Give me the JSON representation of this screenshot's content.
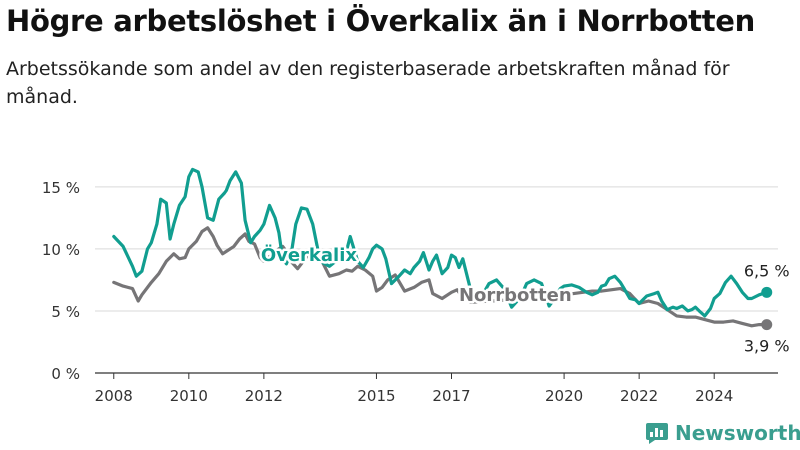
{
  "header": {
    "title": "Högre arbetslöshet i Överkalix än i Norrbotten",
    "subtitle": "Arbetssökande som andel av den registerbaserade arbetskraften månad för månad."
  },
  "colors": {
    "overkalix": "#119e90",
    "norrbotten": "#767577",
    "grid": "#d9d9d9",
    "brand": "#3a9e8f"
  },
  "brand": {
    "name": "Newsworthy",
    "icon": "newsworthy-logo-icon"
  },
  "chart_data": {
    "type": "line",
    "ylim": [
      0,
      17
    ],
    "xlim": [
      2007.5,
      2025.7
    ],
    "yticks": [
      0,
      5,
      10,
      15
    ],
    "ytick_labels": [
      "0 %",
      "5 %",
      "10 %",
      "15 %"
    ],
    "xticks": [
      2008,
      2010,
      2012,
      2015,
      2017,
      2020,
      2022,
      2024
    ],
    "xtick_labels": [
      "2008",
      "2010",
      "2012",
      "2015",
      "2017",
      "2020",
      "2022",
      "2024"
    ],
    "grid": true,
    "series": [
      {
        "name": "Överkalix",
        "color": "#119e90",
        "end_label": "6,5 %",
        "x": [
          2008.0,
          2008.25,
          2008.5,
          2008.6,
          2008.75,
          2008.9,
          2009.0,
          2009.15,
          2009.25,
          2009.4,
          2009.5,
          2009.6,
          2009.75,
          2009.9,
          2010.0,
          2010.1,
          2010.25,
          2010.35,
          2010.5,
          2010.65,
          2010.8,
          2010.95,
          2011.0,
          2011.1,
          2011.25,
          2011.4,
          2011.5,
          2011.65,
          2011.75,
          2011.9,
          2012.0,
          2012.15,
          2012.3,
          2012.4,
          2012.5,
          2012.6,
          2012.75,
          2012.85,
          2013.0,
          2013.15,
          2013.3,
          2013.5,
          2013.75,
          2014.0,
          2014.2,
          2014.3,
          2014.5,
          2014.65,
          2014.8,
          2014.9,
          2015.0,
          2015.15,
          2015.25,
          2015.4,
          2015.6,
          2015.75,
          2015.9,
          2016.0,
          2016.15,
          2016.25,
          2016.4,
          2016.5,
          2016.6,
          2016.75,
          2016.9,
          2017.0,
          2017.1,
          2017.2,
          2017.3,
          2017.5,
          2017.75,
          2018.0,
          2018.2,
          2018.4,
          2018.6,
          2018.75,
          2018.9,
          2019.0,
          2019.2,
          2019.4,
          2019.6,
          2019.75,
          2019.9,
          2020.0,
          2020.2,
          2020.4,
          2020.6,
          2020.75,
          2020.9,
          2021.0,
          2021.1,
          2021.2,
          2021.35,
          2021.5,
          2021.6,
          2021.75,
          2021.9,
          2022.0,
          2022.2,
          2022.4,
          2022.5,
          2022.6,
          2022.75,
          2022.9,
          2023.0,
          2023.15,
          2023.3,
          2023.4,
          2023.5,
          2023.6,
          2023.75,
          2023.9,
          2024.0,
          2024.15,
          2024.3,
          2024.45,
          2024.6,
          2024.75,
          2024.9,
          2025.0,
          2025.2,
          2025.4
        ],
        "y": [
          11.0,
          10.2,
          8.6,
          7.8,
          8.2,
          10.0,
          10.5,
          12.0,
          14.0,
          13.7,
          10.8,
          12.0,
          13.5,
          14.2,
          15.8,
          16.4,
          16.2,
          15.0,
          12.5,
          12.3,
          14.0,
          14.5,
          14.7,
          15.5,
          16.2,
          15.3,
          12.3,
          10.5,
          11.0,
          11.5,
          12.0,
          13.5,
          12.5,
          11.3,
          9.2,
          8.8,
          10.0,
          12.0,
          13.3,
          13.2,
          12.0,
          9.0,
          8.6,
          9.2,
          9.8,
          11.0,
          9.0,
          8.5,
          9.3,
          10.0,
          10.3,
          10.0,
          9.2,
          7.2,
          7.8,
          8.3,
          8.0,
          8.5,
          9.0,
          9.7,
          8.3,
          9.0,
          9.5,
          8.0,
          8.5,
          9.5,
          9.3,
          8.5,
          9.2,
          6.8,
          5.9,
          7.2,
          7.5,
          6.8,
          5.3,
          5.8,
          6.5,
          7.2,
          7.5,
          7.2,
          5.4,
          6.0,
          6.8,
          7.0,
          7.1,
          6.9,
          6.5,
          6.3,
          6.5,
          7.0,
          7.1,
          7.6,
          7.8,
          7.3,
          6.8,
          6.0,
          5.9,
          5.6,
          6.2,
          6.4,
          6.5,
          5.8,
          5.1,
          5.3,
          5.2,
          5.4,
          5.0,
          5.1,
          5.3,
          5.0,
          4.6,
          5.2,
          6.0,
          6.4,
          7.3,
          7.8,
          7.2,
          6.5,
          6.0,
          6.0,
          6.3,
          6.5
        ]
      },
      {
        "name": "Norrbotten",
        "color": "#767577",
        "end_label": "3,9 %",
        "x": [
          2008.0,
          2008.25,
          2008.5,
          2008.65,
          2008.75,
          2009.0,
          2009.2,
          2009.4,
          2009.6,
          2009.75,
          2009.9,
          2010.0,
          2010.2,
          2010.35,
          2010.5,
          2010.65,
          2010.75,
          2010.9,
          2011.0,
          2011.2,
          2011.35,
          2011.5,
          2011.6,
          2011.75,
          2011.9,
          2012.0,
          2012.2,
          2012.35,
          2012.5,
          2012.6,
          2012.75,
          2012.9,
          2013.0,
          2013.2,
          2013.4,
          2013.5,
          2013.75,
          2014.0,
          2014.2,
          2014.35,
          2014.5,
          2014.7,
          2014.9,
          2015.0,
          2015.15,
          2015.3,
          2015.5,
          2015.75,
          2016.0,
          2016.2,
          2016.4,
          2016.5,
          2016.75,
          2017.0,
          2017.15,
          2017.3,
          2017.5,
          2019.6,
          2019.75,
          2020.0,
          2020.25,
          2020.5,
          2020.75,
          2021.0,
          2021.25,
          2021.5,
          2021.75,
          2022.0,
          2022.25,
          2022.5,
          2022.75,
          2023.0,
          2023.25,
          2023.5,
          2023.75,
          2024.0,
          2024.25,
          2024.5,
          2024.75,
          2025.0,
          2025.2,
          2025.4
        ],
        "y": [
          7.3,
          7.0,
          6.8,
          5.8,
          6.3,
          7.3,
          8.0,
          9.0,
          9.6,
          9.2,
          9.3,
          10.0,
          10.6,
          11.4,
          11.7,
          11.0,
          10.3,
          9.6,
          9.8,
          10.2,
          10.8,
          11.2,
          10.6,
          10.4,
          9.3,
          9.0,
          9.5,
          9.9,
          10.2,
          9.8,
          8.9,
          8.4,
          8.8,
          9.6,
          9.8,
          9.3,
          7.8,
          8.0,
          8.3,
          8.2,
          8.6,
          8.3,
          7.8,
          6.6,
          6.9,
          7.5,
          7.9,
          6.6,
          6.9,
          7.3,
          7.5,
          6.4,
          6.0,
          6.5,
          6.7,
          6.1,
          5.7,
          6.1,
          6.3,
          6.3,
          6.4,
          6.5,
          6.6,
          6.6,
          6.7,
          6.8,
          6.4,
          5.6,
          5.8,
          5.6,
          5.1,
          4.6,
          4.5,
          4.5,
          4.3,
          4.1,
          4.1,
          4.2,
          4.0,
          3.8,
          3.9,
          3.9
        ]
      }
    ],
    "annotations": [
      {
        "text": "Överkalix",
        "series": 0,
        "x": 2013.2,
        "y": 9.5
      },
      {
        "text": "Norrbotten",
        "series": 1,
        "x": 2018.7,
        "y": 6.3
      }
    ]
  }
}
